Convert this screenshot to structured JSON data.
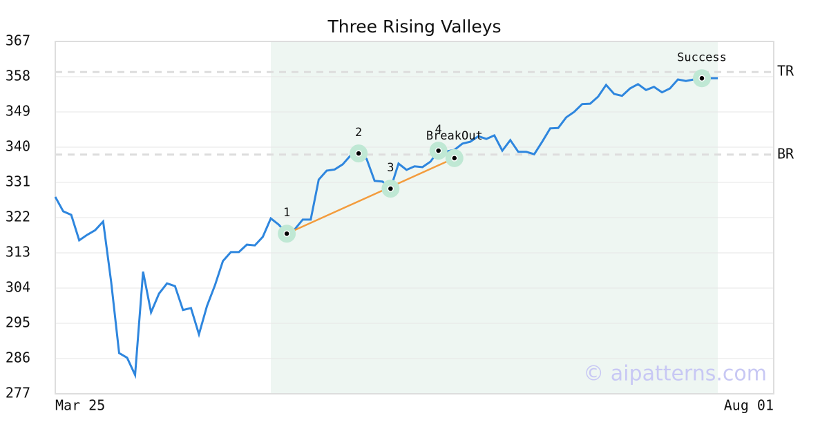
{
  "chart_data": {
    "type": "line",
    "title": "Three Rising Valleys",
    "xlim": [
      0,
      90
    ],
    "xticks": [
      {
        "value": 0,
        "label": "Mar 25"
      },
      {
        "value": 90,
        "label": "Aug 01"
      }
    ],
    "ylim": [
      277,
      367
    ],
    "yticks": [
      277,
      286,
      295,
      304,
      313,
      322,
      331,
      340,
      349,
      358,
      367
    ],
    "grid": true,
    "color": "#2e86de",
    "values": [
      327.3,
      323.6,
      322.7,
      316.2,
      317.6,
      318.8,
      321.0,
      305.6,
      287.4,
      286.2,
      281.8,
      308.2,
      297.8,
      302.6,
      305.2,
      304.5,
      298.4,
      298.9,
      292.2,
      299.4,
      304.7,
      310.9,
      313.2,
      313.2,
      315.1,
      314.9,
      317.1,
      321.8,
      320.2,
      317.9,
      319.0,
      321.5,
      321.5,
      331.7,
      334.0,
      334.3,
      335.6,
      337.9,
      338.4,
      337.0,
      331.4,
      331.2,
      329.4,
      335.8,
      334.2,
      335.1,
      334.9,
      336.3,
      339.1,
      338.9,
      339.3,
      340.9,
      341.4,
      342.8,
      342.1,
      343.0,
      339.1,
      341.8,
      338.8,
      338.8,
      338.2,
      341.4,
      344.8,
      344.9,
      347.6,
      349.0,
      351.0,
      351.1,
      352.9,
      355.9,
      353.6,
      353.1,
      355.0,
      356.1,
      354.6,
      355.4,
      354.0,
      355.0,
      357.3,
      356.9,
      357.3,
      357.6,
      357.6,
      357.6
    ],
    "highlight": {
      "from": 27,
      "to": 83,
      "color": "#eef6f2"
    },
    "levels": [
      {
        "name": "TR",
        "value": 359.2
      },
      {
        "name": "BR",
        "value": 338.1
      }
    ],
    "points": [
      {
        "label": "1",
        "x": 29,
        "y": 317.9
      },
      {
        "label": "2",
        "x": 38,
        "y": 338.4
      },
      {
        "label": "3",
        "x": 42,
        "y": 329.4
      },
      {
        "label": "4",
        "x": 48,
        "y": 339.1
      },
      {
        "label": "BreakOut",
        "x": 50,
        "y": 337.2
      },
      {
        "label": "Success",
        "x": 81,
        "y": 357.6
      }
    ],
    "trendline": {
      "from": 0,
      "to": 4,
      "color": "#f39c3d"
    },
    "watermark": "© aipatterns.com"
  }
}
